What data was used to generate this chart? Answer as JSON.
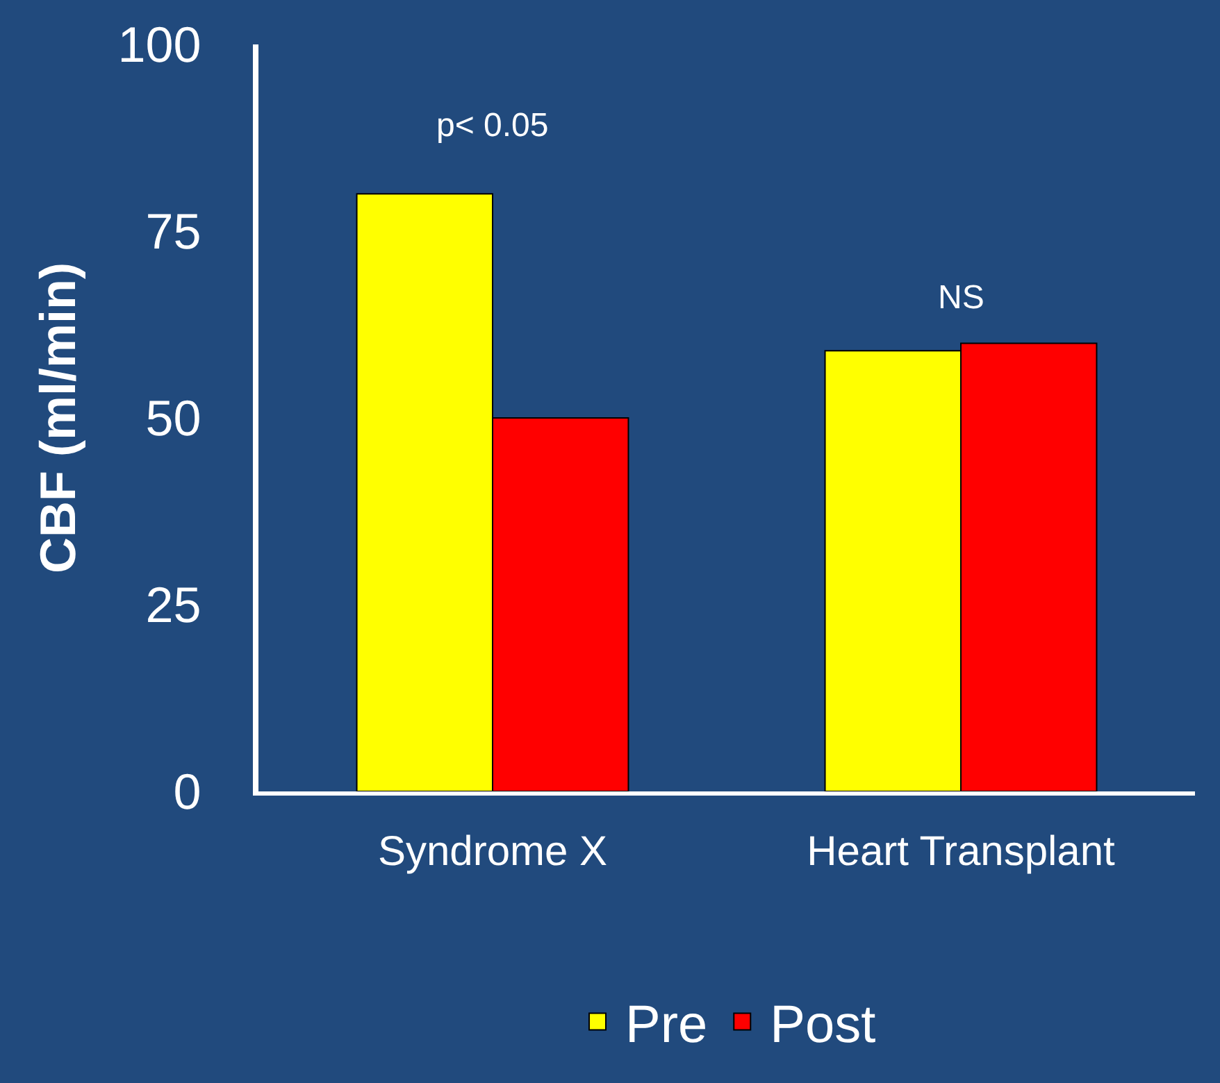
{
  "chart_data": {
    "type": "bar",
    "ylabel": "CBF (ml/min)",
    "categories": [
      "Syndrome X",
      "Heart Transplant"
    ],
    "series": [
      {
        "name": "Pre",
        "color": "#ffff00",
        "values": [
          80,
          59
        ]
      },
      {
        "name": "Post",
        "color": "#ff0000",
        "values": [
          50,
          60
        ]
      }
    ],
    "ylim": [
      0,
      100
    ],
    "yticks": [
      0,
      25,
      50,
      75,
      100
    ],
    "legend": "bottom",
    "annotations": [
      "p< 0.05",
      "NS"
    ]
  }
}
